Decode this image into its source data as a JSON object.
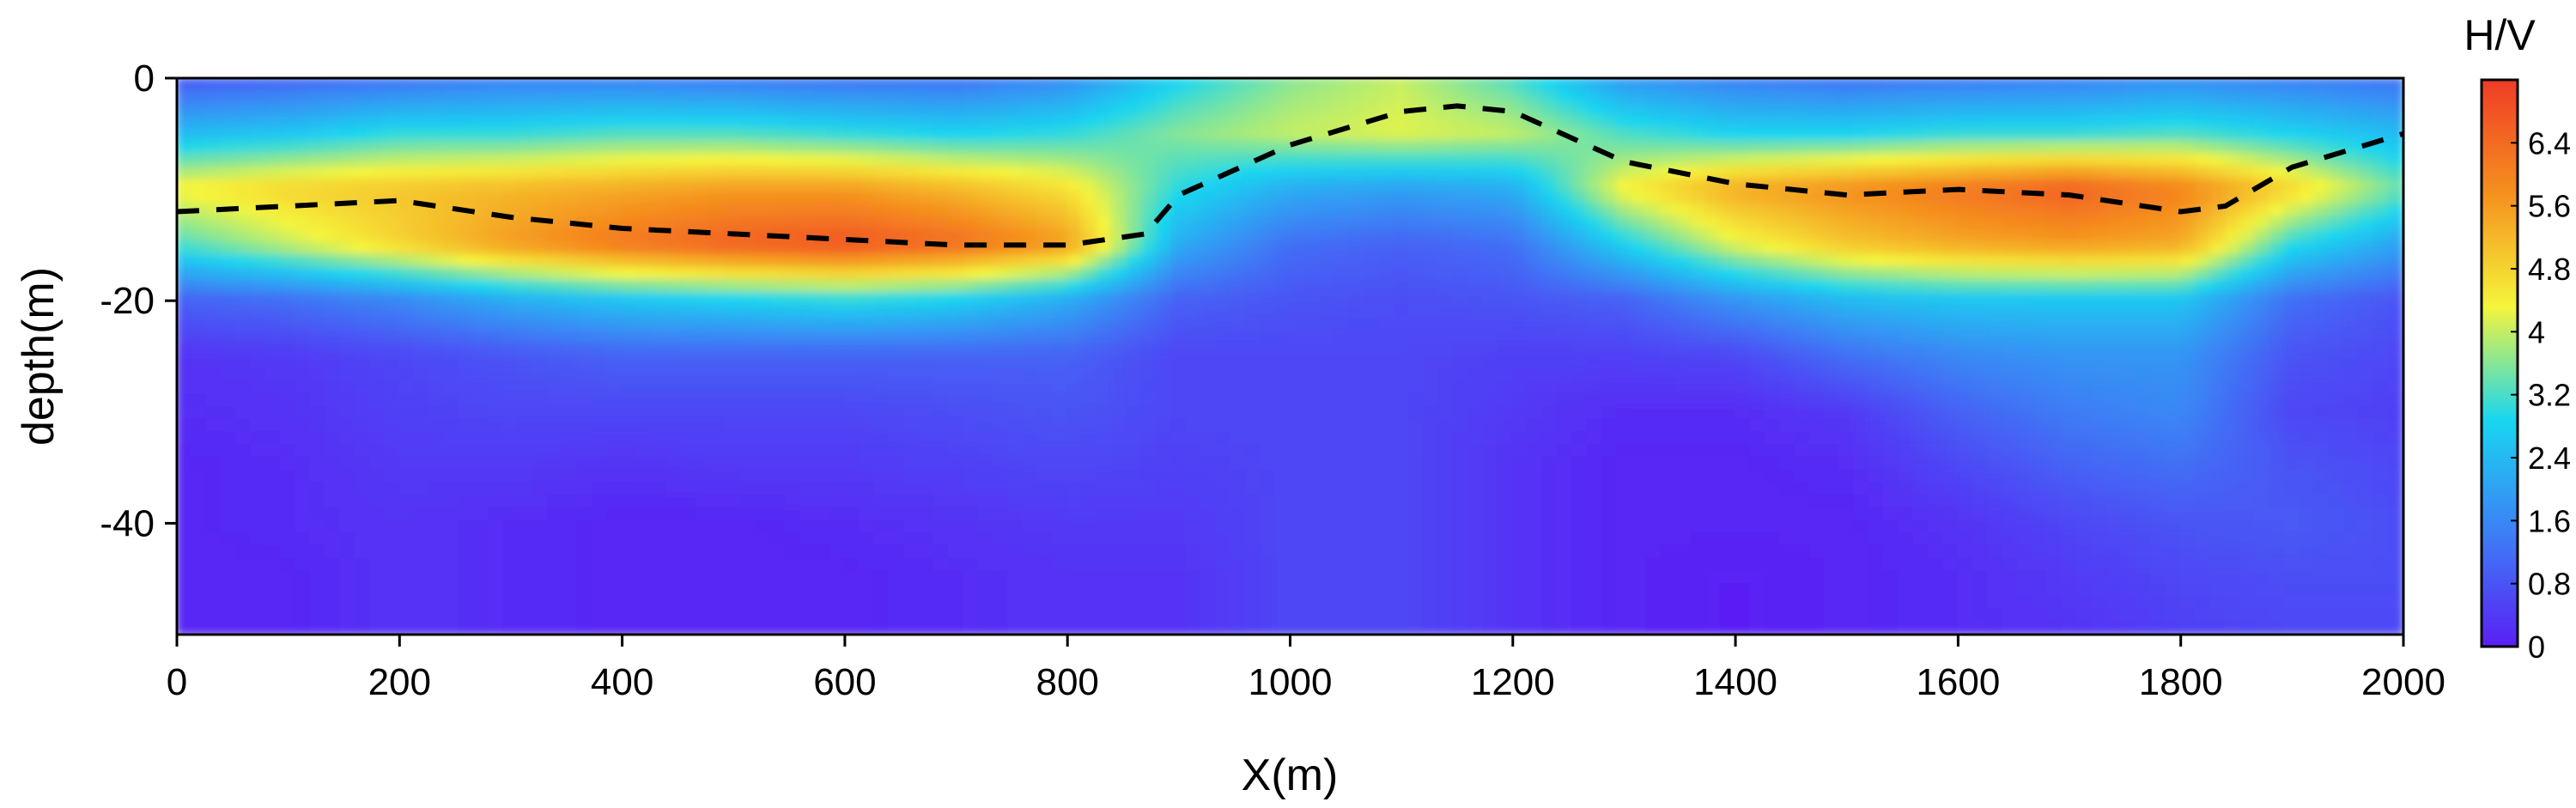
{
  "chart_data": {
    "type": "heatmap",
    "title": "",
    "xlabel": "X(m)",
    "ylabel": "depth(m)",
    "xlim": [
      0,
      2000
    ],
    "ylim": [
      -50,
      0
    ],
    "x_ticks": [
      0,
      200,
      400,
      600,
      800,
      1000,
      1200,
      1400,
      1600,
      1800,
      2000
    ],
    "y_ticks": [
      0,
      -20,
      -40
    ],
    "colorbar": {
      "label": "H/V",
      "min": 0,
      "max": 7.2,
      "ticks": [
        "0",
        "0.8",
        "1.6",
        "2.4",
        "3.2",
        "4",
        "4.8",
        "5.6",
        "6.4"
      ],
      "colormap": [
        "#5a1ff5",
        "#3d7ff5",
        "#19d6f0",
        "#f5f53c",
        "#f5901e",
        "#f03c28"
      ]
    },
    "interface_line": {
      "style": "dashed",
      "color": "#000000",
      "x": [
        0,
        100,
        200,
        300,
        400,
        500,
        600,
        700,
        800,
        870,
        900,
        1000,
        1100,
        1150,
        1200,
        1300,
        1400,
        1500,
        1600,
        1700,
        1800,
        1840,
        1900,
        2000
      ],
      "depth": [
        -12,
        -11.5,
        -11,
        -12.5,
        -13.5,
        -14,
        -14.5,
        -15,
        -15,
        -14,
        -10.5,
        -6,
        -3,
        -2.5,
        -3,
        -7.5,
        -9.5,
        -10.5,
        -10,
        -10.5,
        -12,
        -11.5,
        -8,
        -5
      ]
    },
    "grid": {
      "x": [
        0,
        100,
        200,
        300,
        400,
        500,
        600,
        700,
        800,
        900,
        1000,
        1100,
        1200,
        1300,
        1400,
        1500,
        1600,
        1700,
        1800,
        1900,
        2000
      ],
      "depth": [
        0,
        -5,
        -10,
        -15,
        -20,
        -25,
        -30,
        -35,
        -40,
        -45,
        -50
      ],
      "values": [
        [
          0.8,
          1.0,
          1.2,
          1.4,
          1.4,
          1.3,
          1.2,
          1.2,
          1.6,
          2.8,
          3.6,
          4.0,
          3.2,
          1.8,
          1.4,
          1.2,
          1.3,
          1.4,
          1.6,
          1.4,
          1.2
        ],
        [
          2.4,
          2.6,
          3.0,
          3.0,
          3.2,
          3.2,
          3.0,
          2.8,
          3.0,
          3.6,
          4.0,
          4.2,
          4.0,
          3.2,
          2.8,
          2.8,
          3.0,
          3.0,
          3.2,
          2.8,
          2.4
        ],
        [
          4.4,
          4.8,
          5.0,
          5.2,
          5.4,
          5.6,
          5.6,
          5.2,
          4.6,
          3.0,
          2.2,
          2.0,
          2.2,
          4.4,
          5.4,
          5.8,
          6.2,
          6.6,
          6.0,
          4.8,
          3.4
        ],
        [
          3.2,
          4.0,
          4.8,
          5.6,
          6.2,
          6.6,
          6.8,
          6.4,
          5.6,
          2.2,
          1.2,
          1.0,
          1.2,
          2.8,
          4.2,
          5.0,
          5.4,
          5.6,
          5.4,
          3.0,
          2.0
        ],
        [
          1.0,
          1.2,
          1.6,
          2.2,
          2.6,
          2.8,
          3.0,
          2.8,
          2.2,
          1.0,
          0.8,
          0.7,
          0.8,
          1.0,
          1.8,
          2.4,
          2.6,
          2.6,
          2.6,
          1.2,
          0.8
        ],
        [
          0.3,
          0.4,
          0.6,
          0.8,
          1.0,
          1.0,
          1.0,
          1.0,
          1.0,
          0.6,
          0.6,
          0.6,
          0.5,
          0.5,
          0.6,
          1.2,
          1.6,
          1.8,
          1.8,
          0.8,
          0.6
        ],
        [
          0.2,
          0.3,
          0.5,
          0.6,
          0.6,
          0.6,
          0.6,
          0.7,
          0.8,
          0.6,
          0.6,
          0.6,
          0.4,
          0.2,
          0.2,
          0.4,
          1.0,
          1.4,
          1.6,
          0.6,
          0.5
        ],
        [
          0.1,
          0.2,
          0.4,
          0.4,
          0.3,
          0.4,
          0.4,
          0.5,
          0.6,
          0.5,
          0.6,
          0.6,
          0.3,
          0.1,
          0.1,
          0.2,
          0.6,
          1.0,
          1.2,
          0.8,
          0.6
        ],
        [
          0.1,
          0.2,
          0.3,
          0.2,
          0.1,
          0.1,
          0.2,
          0.3,
          0.4,
          0.4,
          0.6,
          0.6,
          0.3,
          0.1,
          0.1,
          0.1,
          0.3,
          0.6,
          0.8,
          0.9,
          0.7
        ],
        [
          0.1,
          0.1,
          0.3,
          0.2,
          0.1,
          0.1,
          0.1,
          0.2,
          0.3,
          0.3,
          0.6,
          0.6,
          0.3,
          0.1,
          0.0,
          0.1,
          0.2,
          0.4,
          0.6,
          0.7,
          0.7
        ],
        [
          0.1,
          0.1,
          0.3,
          0.2,
          0.1,
          0.1,
          0.1,
          0.2,
          0.3,
          0.3,
          0.6,
          0.6,
          0.3,
          0.1,
          0.0,
          0.1,
          0.2,
          0.3,
          0.5,
          0.6,
          0.6
        ]
      ]
    }
  }
}
